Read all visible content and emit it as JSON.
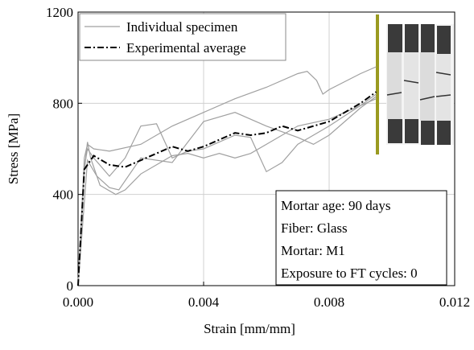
{
  "chart_data": {
    "type": "line",
    "x_label": "Strain [mm/mm]",
    "y_label": "Stress [MPa]",
    "xlim": [
      0,
      0.012
    ],
    "ylim": [
      0,
      1200
    ],
    "xticks": [
      {
        "value": 0,
        "label": "0.000"
      },
      {
        "value": 0.004,
        "label": "0.004"
      },
      {
        "value": 0.008,
        "label": "0.008"
      },
      {
        "value": 0.012,
        "label": "0.012"
      }
    ],
    "yticks": [
      0,
      400,
      800,
      1200
    ],
    "grid": true,
    "legend": "upper left",
    "series": [
      {
        "name": "Individual specimen",
        "color": "#a0a0a0",
        "style": "solid",
        "x": [
          0,
          0.0002,
          0.0003,
          0.0005,
          0.001,
          0.002,
          0.003,
          0.004,
          0.005,
          0.006,
          0.007,
          0.0073,
          0.0076,
          0.0078,
          0.008,
          0.009,
          0.0095
        ],
        "values": [
          0,
          560,
          620,
          600,
          590,
          620,
          700,
          760,
          820,
          870,
          930,
          940,
          900,
          840,
          860,
          930,
          960
        ]
      },
      {
        "color": "#a0a0a0",
        "style": "solid",
        "x": [
          0,
          0.0002,
          0.0003,
          0.0005,
          0.001,
          0.0015,
          0.002,
          0.0025,
          0.003,
          0.0035,
          0.004,
          0.005,
          0.0055,
          0.006,
          0.0065,
          0.007,
          0.008,
          0.009,
          0.0095
        ],
        "values": [
          0,
          520,
          600,
          560,
          480,
          560,
          700,
          710,
          560,
          590,
          600,
          660,
          650,
          500,
          540,
          620,
          700,
          790,
          840
        ]
      },
      {
        "color": "#a0a0a0",
        "style": "solid",
        "x": [
          0,
          0.0002,
          0.0003,
          0.0004,
          0.0007,
          0.0012,
          0.0015,
          0.002,
          0.003,
          0.0035,
          0.004,
          0.0045,
          0.005,
          0.0055,
          0.006,
          0.007,
          0.008,
          0.009,
          0.0095
        ],
        "values": [
          0,
          500,
          630,
          560,
          440,
          400,
          420,
          490,
          570,
          580,
          560,
          580,
          560,
          580,
          620,
          700,
          730,
          790,
          820
        ]
      },
      {
        "color": "#a0a0a0",
        "style": "solid",
        "x": [
          0,
          0.0003,
          0.0006,
          0.001,
          0.0013,
          0.002,
          0.003,
          0.004,
          0.005,
          0.006,
          0.007,
          0.0075,
          0.008,
          0.009,
          0.0095
        ],
        "values": [
          0,
          550,
          480,
          430,
          420,
          560,
          540,
          720,
          760,
          700,
          650,
          620,
          660,
          780,
          830
        ]
      },
      {
        "name": "Experimental average",
        "color": "#000000",
        "style": "dashdot",
        "x": [
          0,
          0.0002,
          0.0005,
          0.001,
          0.0015,
          0.002,
          0.003,
          0.0035,
          0.004,
          0.0045,
          0.005,
          0.0055,
          0.006,
          0.0065,
          0.007,
          0.008,
          0.009,
          0.0095
        ],
        "values": [
          0,
          510,
          570,
          530,
          520,
          550,
          610,
          590,
          610,
          640,
          670,
          660,
          670,
          700,
          680,
          720,
          800,
          850
        ]
      }
    ],
    "annotations": [
      "Mortar age: 90 days",
      "Fiber: Glass",
      "Mortar: M1",
      "Exposure to FT cycles: 0"
    ]
  }
}
